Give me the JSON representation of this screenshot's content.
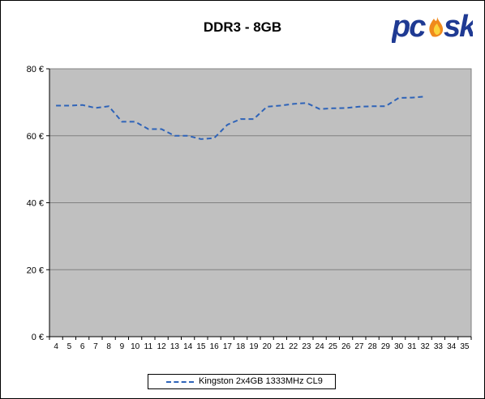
{
  "chart_data": {
    "type": "line",
    "title": "DDR3 - 8GB",
    "x": [
      4,
      5,
      6,
      7,
      8,
      9,
      10,
      11,
      12,
      13,
      14,
      15,
      16,
      17,
      18,
      19,
      20,
      21,
      22,
      23,
      24,
      25,
      26,
      27,
      28,
      29,
      30,
      31,
      32
    ],
    "x_ticks": [
      4,
      5,
      6,
      7,
      8,
      9,
      10,
      11,
      12,
      13,
      14,
      15,
      16,
      17,
      18,
      19,
      20,
      21,
      22,
      23,
      24,
      25,
      26,
      27,
      28,
      29,
      30,
      31,
      32,
      33,
      34,
      35
    ],
    "y_ticks": [
      "0 €",
      "20 €",
      "40 €",
      "60 €",
      "80 €"
    ],
    "ylim": [
      0,
      80
    ],
    "grid": true,
    "series": [
      {
        "name": "Kingston 2x4GB 1333MHz CL9",
        "color": "#2e63b8",
        "values": [
          69,
          69,
          69.2,
          68.3,
          68.8,
          64.2,
          64.2,
          62,
          62,
          60,
          60,
          59,
          59.3,
          63.3,
          65,
          65,
          68.7,
          69,
          69.5,
          69.8,
          68,
          68.2,
          68.3,
          68.7,
          68.8,
          68.8,
          71.3,
          71.4,
          71.7
        ]
      }
    ],
    "legend": "bottom"
  },
  "logo": {
    "text": "pcesk"
  },
  "colors": {
    "plot_bg": "#c0c0c0",
    "grid": "#808080",
    "line": "#2e63b8"
  }
}
